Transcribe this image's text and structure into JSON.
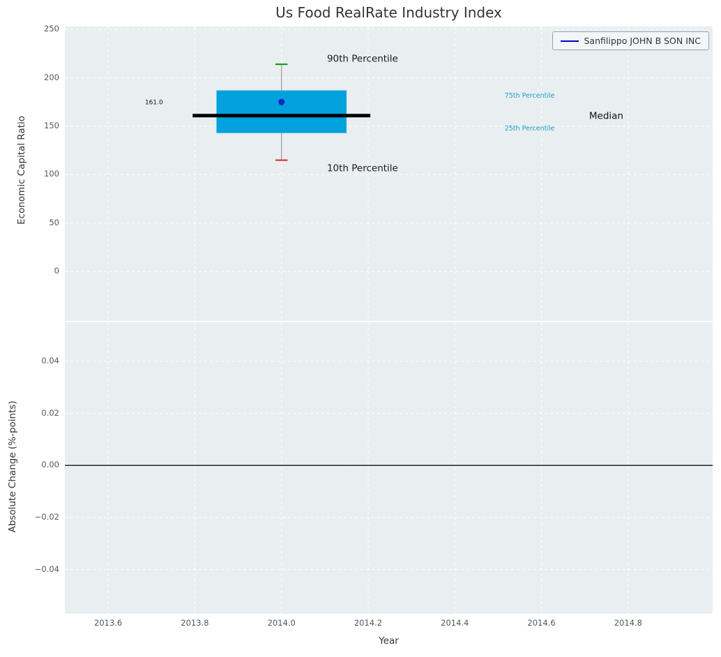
{
  "chart_data": {
    "type": "boxplot",
    "title": "Us Food RealRate Industry Index",
    "xlabel": "Year",
    "xlim": [
      2013.5,
      2014.995
    ],
    "x_ticks": [
      2013.6,
      2013.8,
      2014.0,
      2014.2,
      2014.4,
      2014.6,
      2014.8
    ],
    "x_tick_labels": [
      "2013.6",
      "2013.8",
      "2014.0",
      "2014.2",
      "2014.4",
      "2014.6",
      "2014.8"
    ],
    "grid": "white dashed",
    "top": {
      "ylabel": "Economic Capital Ratio",
      "ylim": [
        -51,
        253
      ],
      "y_ticks": [
        0,
        50,
        100,
        150,
        200,
        250
      ],
      "y_tick_labels": [
        "0",
        "50",
        "100",
        "150",
        "200",
        "250"
      ],
      "box": {
        "x": 2014.0,
        "box_half_width": 0.15,
        "median_half_width": 0.205,
        "cap_half_width": 0.014,
        "p10": 115,
        "p25": 143,
        "median": 161,
        "p75": 187,
        "p90": 214,
        "company_value": 175,
        "median_label": "161.0"
      },
      "annotations": [
        {
          "text": "90th Percentile",
          "x": 2014.105,
          "y": 220,
          "color": "#1a1a1a",
          "size": 13.5
        },
        {
          "text": "10th Percentile",
          "x": 2014.105,
          "y": 107,
          "color": "#1a1a1a",
          "size": 13.5
        },
        {
          "text": "75th Percentile",
          "x": 2014.515,
          "y": 182,
          "color": "#199fce",
          "size": 9.5
        },
        {
          "text": "25th Percentile",
          "x": 2014.515,
          "y": 148,
          "color": "#199fce",
          "size": 9.5
        },
        {
          "text": "Median",
          "x": 2014.71,
          "y": 161,
          "color": "#111111",
          "size": 13.5
        },
        {
          "text": "161.0",
          "x": 2013.685,
          "y": 175,
          "color": "#111111",
          "size": 9
        }
      ],
      "legend": {
        "label": "Sanfilippo JOHN B SON INC",
        "position": "upper right"
      }
    },
    "bottom": {
      "ylabel": "Absolute Change (%-points)",
      "ylim": [
        -0.057,
        0.055
      ],
      "y_ticks": [
        -0.04,
        -0.02,
        0.0,
        0.02,
        0.04
      ],
      "y_tick_labels": [
        "−0.04",
        "−0.02",
        "0.00",
        "0.02",
        "0.04"
      ],
      "zero_line": 0.0
    },
    "colors": {
      "box_fill": "#00a1dc",
      "median": "#000000",
      "whisker": "#9a9a9a",
      "cap_top": "#009900",
      "cap_bottom": "#dd2222",
      "company_dot": "#2222cc",
      "legend_line": "#0000cc",
      "axes_bg": "#e9eef0",
      "grid": "#ffffff",
      "zero_line": "#000000"
    }
  }
}
